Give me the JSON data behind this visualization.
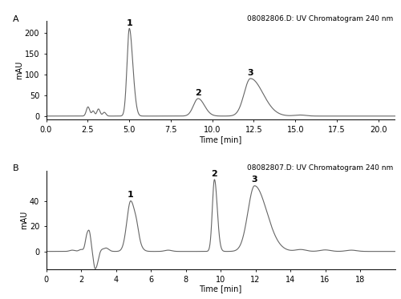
{
  "panel_A": {
    "title": "08082806.D: UV Chromatogram 240 nm",
    "ylabel": "mAU",
    "xlabel": "Time [min]",
    "xlim": [
      0.0,
      21.0
    ],
    "ylim": [
      -8,
      228
    ],
    "yticks": [
      0,
      50,
      100,
      150,
      200
    ],
    "xticks": [
      0.0,
      2.5,
      5.0,
      7.5,
      10.0,
      12.5,
      15.0,
      17.5,
      20.0
    ],
    "xtick_labels": [
      "0.0",
      "2.5",
      "5.0",
      "7.5",
      "10.0",
      "12.5",
      "15.0",
      "17.5",
      "20.0"
    ],
    "panel_label": "A"
  },
  "panel_B": {
    "title": "08082807.D: UV Chromatogram 240 nm",
    "ylabel": "mAU",
    "xlabel": "Time [min]",
    "xlim": [
      0,
      20
    ],
    "ylim": [
      -14,
      64
    ],
    "yticks": [
      0,
      20,
      40
    ],
    "xticks": [
      0,
      2,
      4,
      6,
      8,
      10,
      12,
      14,
      16,
      18
    ],
    "xtick_labels": [
      "0",
      "2",
      "4",
      "6",
      "8",
      "10",
      "12",
      "14",
      "16",
      "18"
    ],
    "panel_label": "B"
  },
  "line_color": "#666666",
  "line_width": 0.8,
  "bg_color": "#ffffff",
  "font_size": 7.0,
  "label_font_size": 8.0,
  "peak_label_font_size": 8.0
}
